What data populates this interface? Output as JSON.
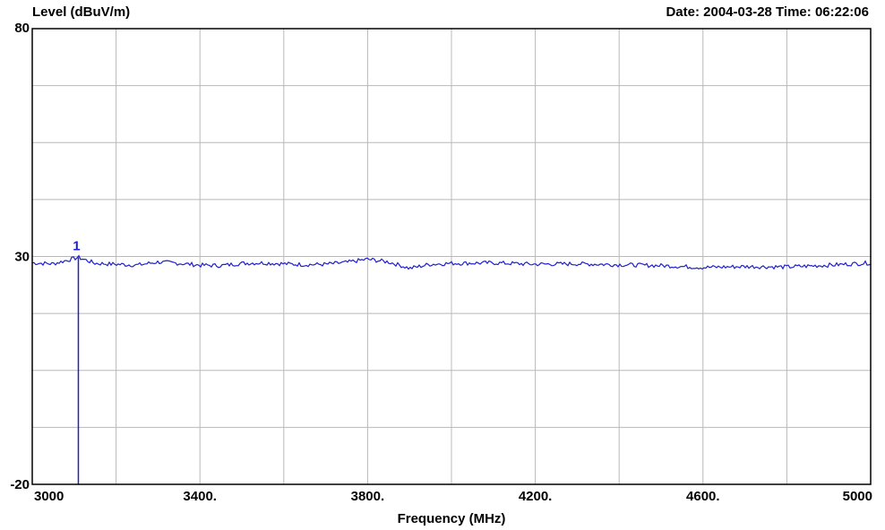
{
  "chart_data": {
    "type": "line",
    "ylabel": "Level (dBuV/m)",
    "xlabel": "Frequency (MHz)",
    "header_right": "Date: 2004-03-28  Time: 06:22:06",
    "xlim": [
      3000,
      5000
    ],
    "ylim": [
      -20,
      80
    ],
    "x_ticks": [
      3000,
      3400,
      3800,
      4200,
      4600,
      5000
    ],
    "x_tick_labels": [
      "3000",
      "3400.",
      "3800.",
      "4200.",
      "4600.",
      "5000"
    ],
    "y_tick_labels": [
      "80",
      "30",
      "-20"
    ],
    "y_tick_values": [
      80,
      30,
      -20
    ],
    "x_grid": [
      3200,
      3400,
      3600,
      3800,
      4000,
      4200,
      4400,
      4600,
      4800
    ],
    "y_grid": [
      67.5,
      55,
      42.5,
      30,
      17.5,
      5,
      -7.5
    ],
    "grid": true,
    "series_color": "#1f1fd0",
    "series": [
      {
        "x": [
          3000,
          3050,
          3110,
          3150,
          3200,
          3250,
          3300,
          3350,
          3400,
          3450,
          3500,
          3550,
          3600,
          3650,
          3700,
          3750,
          3800,
          3850,
          3880,
          3900,
          3950,
          4000,
          4100,
          4200,
          4300,
          4400,
          4500,
          4600,
          4700,
          4800,
          4900,
          5000
        ],
        "values": [
          28.6,
          28.4,
          29.8,
          28.5,
          28.3,
          28.1,
          28.8,
          28.5,
          28.1,
          28.0,
          28.5,
          28.6,
          28.4,
          28.2,
          28.3,
          28.7,
          29.4,
          28.8,
          28.0,
          27.4,
          28.3,
          28.5,
          28.6,
          28.3,
          28.4,
          28.2,
          28.0,
          27.6,
          27.8,
          27.7,
          28.1,
          28.6
        ]
      }
    ],
    "markers": [
      {
        "label": "1",
        "x": 3110,
        "y": 29.8
      }
    ]
  }
}
